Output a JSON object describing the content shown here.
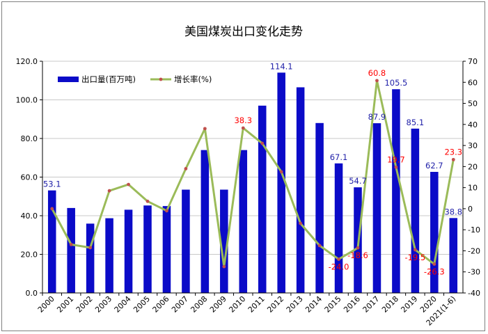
{
  "chart_data": {
    "type": "bar+line",
    "title": "美国煤炭出口变化走势",
    "categories": [
      "2000",
      "2001",
      "2002",
      "2003",
      "2004",
      "2005",
      "2006",
      "2007",
      "2008",
      "2009",
      "2010",
      "2011",
      "2012",
      "2013",
      "2014",
      "2015",
      "2016",
      "2017",
      "2018",
      "2019",
      "2020",
      "2021(1-6)"
    ],
    "left_axis": {
      "ylim": [
        0,
        120
      ],
      "step": 20,
      "ticks": [
        "0.0",
        "20.0",
        "40.0",
        "60.0",
        "80.0",
        "100.0",
        "120.0"
      ]
    },
    "right_axis": {
      "ylim": [
        -40,
        70
      ],
      "step": 10,
      "ticks": [
        "-40",
        "-30",
        "-20",
        "-10",
        "0",
        "10",
        "20",
        "30",
        "40",
        "50",
        "60",
        "70"
      ]
    },
    "legend": {
      "placement": "top-left"
    },
    "colors": {
      "bar": "#0b0bc8",
      "line": "#9bbb59",
      "marker": "#c0504d",
      "bar_label": "#1f1fa8",
      "line_label": "#ff0000"
    },
    "series": [
      {
        "name": "出口量(百万吨)",
        "kind": "bar",
        "axis": "left",
        "values": [
          53.1,
          44.0,
          35.9,
          38.7,
          43.1,
          45.3,
          45.0,
          53.5,
          74.0,
          53.5,
          74.0,
          97.0,
          114.1,
          106.5,
          88.0,
          67.1,
          54.7,
          87.9,
          105.5,
          85.1,
          62.7,
          38.8
        ],
        "labels": [
          "53.1",
          "",
          "",
          "",
          "",
          "",
          "",
          "",
          "",
          "",
          "",
          "",
          "114.1",
          "",
          "",
          "67.1",
          "54.7",
          "87.9",
          "105.5",
          "85.1",
          "62.7",
          "38.8"
        ]
      },
      {
        "name": "增长率(%)",
        "kind": "line",
        "axis": "right",
        "values": [
          0,
          -17,
          -18.5,
          8.5,
          11.5,
          3.5,
          -1,
          19,
          38,
          -27.5,
          38.3,
          31,
          17.5,
          -7,
          -17.5,
          -24.0,
          -18.6,
          60.8,
          19.7,
          -19.5,
          -26.3,
          23.3
        ],
        "labels": [
          "",
          "",
          "",
          "",
          "",
          "",
          "",
          "",
          "",
          "",
          "38.3",
          "",
          "",
          "",
          "",
          "-24.0",
          "-18.6",
          "60.8",
          "19.7",
          "-19.5",
          "-26.3",
          "23.3"
        ]
      }
    ]
  }
}
